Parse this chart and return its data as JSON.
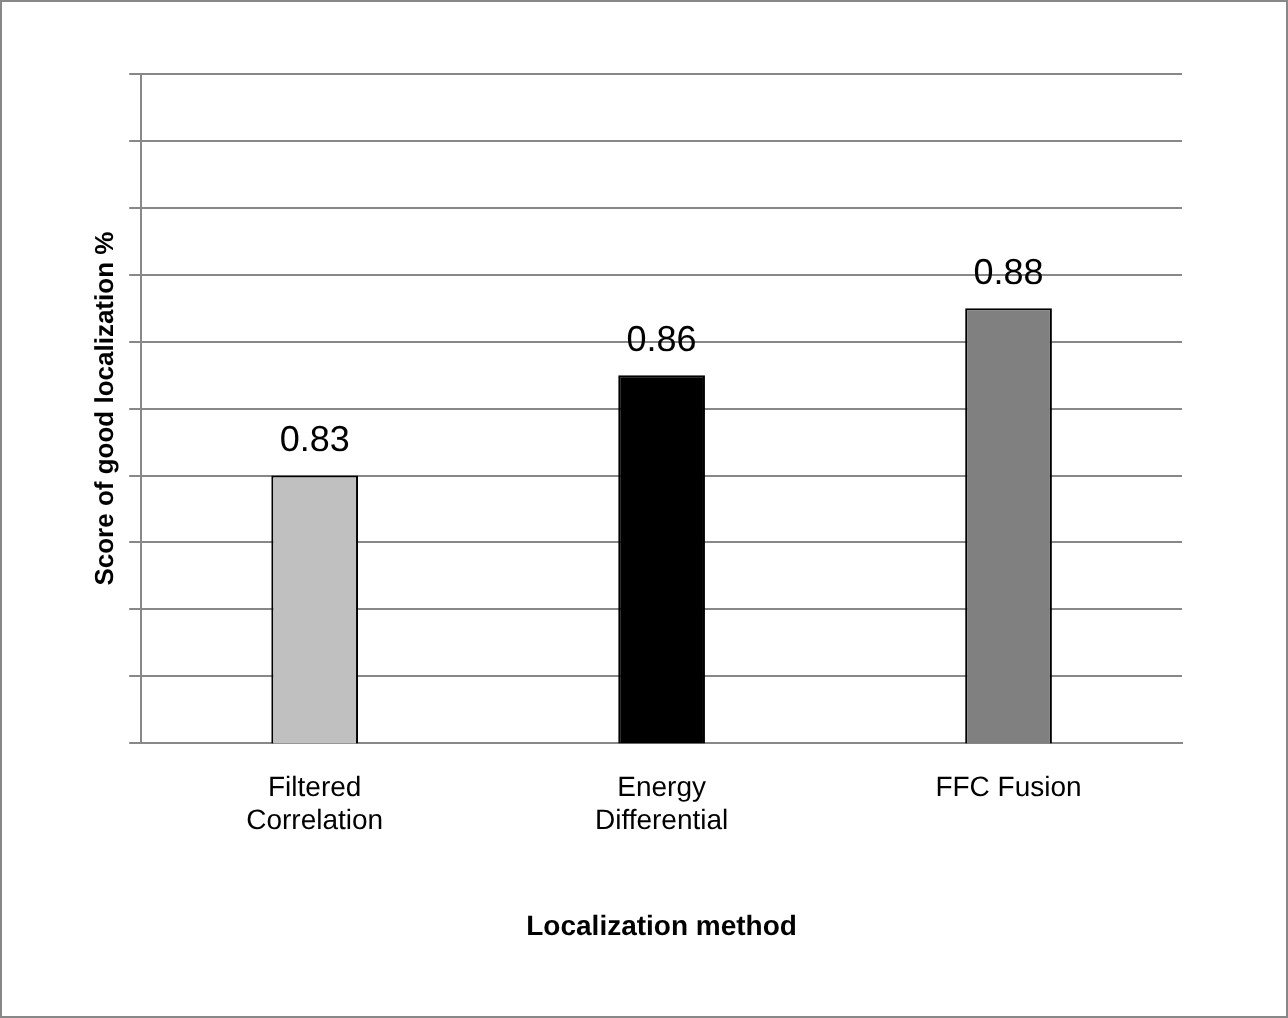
{
  "chart_data": {
    "type": "bar",
    "categories": [
      "Filtered Correlation",
      "Energy Differential",
      "FFC Fusion"
    ],
    "values": [
      0.83,
      0.86,
      0.88
    ],
    "colors": [
      "#c0c0c0",
      "#000000",
      "#808080"
    ],
    "xlabel": "Localization method",
    "ylabel": "Score of good localization %",
    "ylim": [
      0.75,
      0.95
    ],
    "yticks": [
      {
        "value": 0.75,
        "label": null
      },
      {
        "value": 0.77,
        "label": null
      },
      {
        "value": 0.79,
        "label": null
      },
      {
        "value": 0.81,
        "label": null
      },
      {
        "value": 0.83,
        "label": null
      },
      {
        "value": 0.85,
        "label": null
      },
      {
        "value": 0.87,
        "label": null
      },
      {
        "value": 0.89,
        "label": null
      },
      {
        "value": 0.91,
        "label": null
      },
      {
        "value": 0.93,
        "label": null
      },
      {
        "value": 0.95,
        "label": null
      }
    ],
    "tick_labels": "x",
    "grid": "y",
    "data_labels": true,
    "legend": false
  }
}
